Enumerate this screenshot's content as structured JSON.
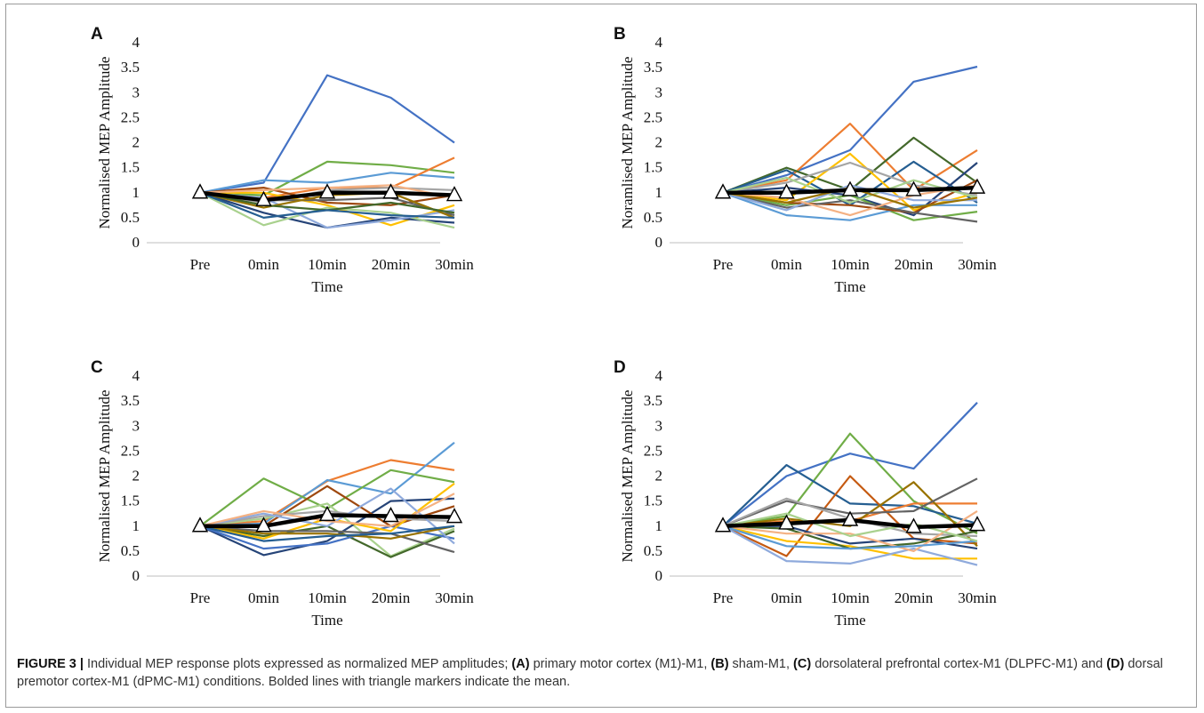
{
  "caption": {
    "label": "FIGURE 3 |",
    "segments": [
      {
        "t": "Individual MEP response plots expressed as normalized MEP amplitudes; ",
        "b": false
      },
      {
        "t": "(A)",
        "b": true
      },
      {
        "t": " primary motor cortex (M1)-M1, ",
        "b": false
      },
      {
        "t": "(B)",
        "b": true
      },
      {
        "t": " sham-M1, ",
        "b": false
      },
      {
        "t": "(C)",
        "b": true
      },
      {
        "t": " dorsolateral prefrontal cortex-M1 (DLPFC-M1) and ",
        "b": false
      },
      {
        "t": "(D)",
        "b": true
      },
      {
        "t": " dorsal premotor cortex-M1 (dPMC-M1) conditions. Bolded lines with triangle markers indicate the mean.",
        "b": false
      }
    ]
  },
  "chart_data": [
    {
      "panel": "A",
      "type": "line",
      "categories": [
        "Pre",
        "0min",
        "10min",
        "20min",
        "30min"
      ],
      "xlabel": "Time",
      "ylabel": "Normalised MEP Amplitude",
      "ylim": [
        0,
        4
      ],
      "yticks": [
        "0",
        "0.5",
        "1",
        "1.5",
        "2",
        "2.5",
        "3",
        "3.5",
        "4"
      ],
      "mean": [
        1,
        0.85,
        1.0,
        1.0,
        0.95
      ],
      "series": [
        {
          "color": "#4472c4",
          "values": [
            1,
            1.2,
            3.35,
            2.9,
            2.0
          ]
        },
        {
          "color": "#70ad47",
          "values": [
            1,
            0.95,
            1.62,
            1.55,
            1.4
          ]
        },
        {
          "color": "#5b9bd5",
          "values": [
            1,
            1.25,
            1.2,
            1.4,
            1.3
          ]
        },
        {
          "color": "#ed7d31",
          "values": [
            1,
            0.9,
            1.1,
            1.1,
            1.7
          ]
        },
        {
          "color": "#a5a5a5",
          "values": [
            1,
            0.8,
            1.05,
            1.1,
            1.05
          ]
        },
        {
          "color": "#ffc000",
          "values": [
            1,
            1.0,
            0.75,
            0.35,
            0.75
          ]
        },
        {
          "color": "#264478",
          "values": [
            1,
            0.6,
            0.3,
            0.5,
            0.4
          ]
        },
        {
          "color": "#9e480e",
          "values": [
            1,
            1.1,
            0.8,
            0.75,
            0.95
          ]
        },
        {
          "color": "#636363",
          "values": [
            1,
            0.85,
            0.85,
            0.9,
            0.55
          ]
        },
        {
          "color": "#a9d18e",
          "values": [
            1,
            0.35,
            0.7,
            0.6,
            0.3
          ]
        },
        {
          "color": "#8faadc",
          "values": [
            1,
            0.9,
            0.3,
            0.45,
            0.65
          ]
        },
        {
          "color": "#997300",
          "values": [
            1,
            0.7,
            0.95,
            1.0,
            0.5
          ]
        },
        {
          "color": "#43682b",
          "values": [
            1,
            0.75,
            0.65,
            0.8,
            0.6
          ]
        },
        {
          "color": "#255e91",
          "values": [
            1,
            0.5,
            0.65,
            0.55,
            0.5
          ]
        },
        {
          "color": "#f4b183",
          "values": [
            1,
            1.05,
            1.1,
            1.15,
            0.9
          ]
        }
      ]
    },
    {
      "panel": "B",
      "type": "line",
      "categories": [
        "Pre",
        "0min",
        "10min",
        "20min",
        "30min"
      ],
      "xlabel": "Time",
      "ylabel": "Noramlised MEP Amplitude",
      "ylim": [
        0,
        4
      ],
      "yticks": [
        "0",
        "0.5",
        "1",
        "1.5",
        "2",
        "2.5",
        "3",
        "3.5",
        "4"
      ],
      "mean": [
        1,
        1.0,
        1.05,
        1.05,
        1.1
      ],
      "series": [
        {
          "color": "#4472c4",
          "values": [
            1,
            1.35,
            1.85,
            3.22,
            3.52
          ]
        },
        {
          "color": "#ed7d31",
          "values": [
            1,
            1.25,
            2.38,
            1.05,
            1.85
          ]
        },
        {
          "color": "#43682b",
          "values": [
            1,
            1.5,
            1.05,
            2.1,
            1.2
          ]
        },
        {
          "color": "#255e91",
          "values": [
            1,
            1.45,
            0.75,
            1.62,
            0.8
          ]
        },
        {
          "color": "#ffc000",
          "values": [
            1,
            0.85,
            1.78,
            0.65,
            1.0
          ]
        },
        {
          "color": "#a5a5a5",
          "values": [
            1,
            1.2,
            1.6,
            1.15,
            0.95
          ]
        },
        {
          "color": "#264478",
          "values": [
            1,
            1.1,
            0.95,
            0.55,
            1.6
          ]
        },
        {
          "color": "#70ad47",
          "values": [
            1,
            0.75,
            0.95,
            0.45,
            0.62
          ]
        },
        {
          "color": "#5b9bd5",
          "values": [
            1,
            0.55,
            0.45,
            0.75,
            0.75
          ]
        },
        {
          "color": "#9e480e",
          "values": [
            1,
            0.8,
            0.75,
            0.6,
            1.25
          ]
        },
        {
          "color": "#636363",
          "values": [
            1,
            0.7,
            0.85,
            0.6,
            0.42
          ]
        },
        {
          "color": "#a9d18e",
          "values": [
            1,
            1.3,
            0.8,
            1.25,
            0.9
          ]
        },
        {
          "color": "#8faadc",
          "values": [
            1,
            0.65,
            1.15,
            0.85,
            0.85
          ]
        },
        {
          "color": "#f4b183",
          "values": [
            1,
            0.9,
            0.55,
            0.95,
            1.15
          ]
        },
        {
          "color": "#997300",
          "values": [
            1,
            0.8,
            1.1,
            0.7,
            0.9
          ]
        }
      ]
    },
    {
      "panel": "C",
      "type": "line",
      "categories": [
        "Pre",
        "0min",
        "10min",
        "20min",
        "30min"
      ],
      "xlabel": "Time",
      "ylabel": "Normalised MEP Amplitude",
      "ylim": [
        0,
        4
      ],
      "yticks": [
        "0",
        "0.5",
        "1",
        "1.5",
        "2",
        "2.5",
        "3",
        "3.5",
        "4"
      ],
      "mean": [
        1,
        1.0,
        1.22,
        1.2,
        1.18
      ],
      "series": [
        {
          "color": "#ed7d31",
          "values": [
            1,
            1.1,
            1.9,
            2.32,
            2.12
          ]
        },
        {
          "color": "#5b9bd5",
          "values": [
            1,
            1.05,
            1.92,
            1.65,
            2.67
          ]
        },
        {
          "color": "#70ad47",
          "values": [
            1,
            1.95,
            1.35,
            2.12,
            1.88
          ]
        },
        {
          "color": "#a9d18e",
          "values": [
            1,
            1.15,
            1.45,
            0.4,
            0.95
          ]
        },
        {
          "color": "#43682b",
          "values": [
            1,
            0.8,
            1.0,
            0.38,
            0.9
          ]
        },
        {
          "color": "#264478",
          "values": [
            1,
            0.42,
            0.7,
            1.5,
            1.55
          ]
        },
        {
          "color": "#4472c4",
          "values": [
            1,
            0.55,
            0.65,
            1.0,
            0.75
          ]
        },
        {
          "color": "#9e480e",
          "values": [
            1,
            1.0,
            1.8,
            1.0,
            1.4
          ]
        },
        {
          "color": "#ffc000",
          "values": [
            1,
            0.75,
            1.15,
            0.9,
            1.85
          ]
        },
        {
          "color": "#a5a5a5",
          "values": [
            1,
            1.2,
            1.3,
            1.15,
            1.1
          ]
        },
        {
          "color": "#636363",
          "values": [
            1,
            0.9,
            0.9,
            0.85,
            0.48
          ]
        },
        {
          "color": "#8faadc",
          "values": [
            1,
            1.25,
            1.0,
            1.75,
            0.65
          ]
        },
        {
          "color": "#997300",
          "values": [
            1,
            0.85,
            0.85,
            0.75,
            1.0
          ]
        },
        {
          "color": "#f4b183",
          "values": [
            1,
            1.3,
            1.1,
            1.0,
            1.65
          ]
        },
        {
          "color": "#255e91",
          "values": [
            1,
            0.7,
            0.8,
            0.85,
            1.0
          ]
        }
      ]
    },
    {
      "panel": "D",
      "type": "line",
      "categories": [
        "Pre",
        "0min",
        "10min",
        "20min",
        "30min"
      ],
      "xlabel": "Time",
      "ylabel": "Normalised MEP Amplitude",
      "ylim": [
        0,
        4
      ],
      "yticks": [
        "0",
        "0.5",
        "1",
        "1.5",
        "2",
        "2.5",
        "3",
        "3.5",
        "4"
      ],
      "mean": [
        1,
        1.05,
        1.12,
        0.98,
        1.02
      ],
      "series": [
        {
          "color": "#4472c4",
          "values": [
            1,
            2.0,
            2.45,
            2.15,
            3.47
          ]
        },
        {
          "color": "#70ad47",
          "values": [
            1,
            1.2,
            2.85,
            1.5,
            0.85
          ]
        },
        {
          "color": "#255e91",
          "values": [
            1,
            2.22,
            1.45,
            1.4,
            1.05
          ]
        },
        {
          "color": "#ed7d31",
          "values": [
            1,
            1.1,
            1.1,
            1.45,
            1.45
          ]
        },
        {
          "color": "#c55a11",
          "values": [
            1,
            0.4,
            2.0,
            0.75,
            0.65
          ]
        },
        {
          "color": "#997300",
          "values": [
            1,
            1.15,
            1.0,
            1.88,
            0.6
          ]
        },
        {
          "color": "#636363",
          "values": [
            1,
            1.5,
            1.25,
            1.3,
            1.95
          ]
        },
        {
          "color": "#a5a5a5",
          "values": [
            1,
            1.55,
            1.15,
            0.85,
            0.8
          ]
        },
        {
          "color": "#ffc000",
          "values": [
            1,
            0.7,
            0.6,
            0.35,
            0.35
          ]
        },
        {
          "color": "#8faadc",
          "values": [
            1,
            0.3,
            0.25,
            0.55,
            0.22
          ]
        },
        {
          "color": "#264478",
          "values": [
            1,
            1.0,
            0.65,
            0.75,
            0.55
          ]
        },
        {
          "color": "#43682b",
          "values": [
            1,
            0.95,
            0.55,
            0.65,
            0.9
          ]
        },
        {
          "color": "#f4b183",
          "values": [
            1,
            0.85,
            0.85,
            0.5,
            1.3
          ]
        },
        {
          "color": "#5b9bd5",
          "values": [
            1,
            0.6,
            0.55,
            0.6,
            0.7
          ]
        },
        {
          "color": "#a9d18e",
          "values": [
            1,
            1.25,
            0.8,
            1.05,
            0.7
          ]
        }
      ]
    }
  ]
}
